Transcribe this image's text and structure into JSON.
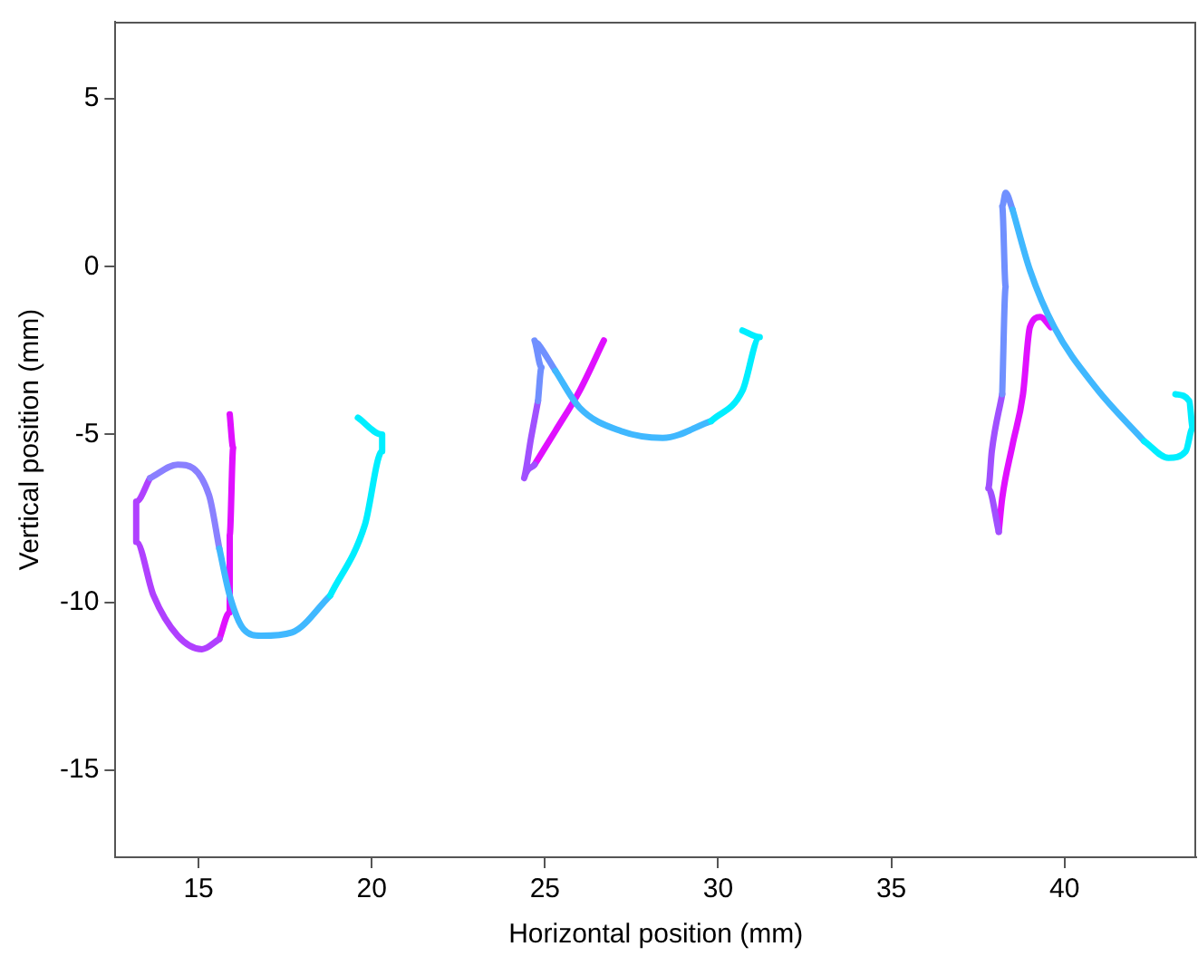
{
  "chart_data": {
    "type": "line",
    "xlabel": "Horizontal position (mm)",
    "ylabel": "Vertical position (mm)",
    "xlim": [
      12.6,
      43.8
    ],
    "xticks": [
      15,
      20,
      25,
      30,
      35,
      40
    ],
    "ylim": [
      -17.6,
      7.3
    ],
    "yticks": [
      -15,
      -10,
      -5,
      0,
      5
    ],
    "grid": false,
    "legend": false,
    "series": [
      {
        "color": "#00eeff",
        "x": [
          19.6,
          20.3,
          20.3,
          19.8,
          18.8
        ],
        "values": [
          -4.5,
          -5.0,
          -5.5,
          -7.7,
          -9.8
        ]
      },
      {
        "color": "#40b8ff",
        "x": [
          18.8,
          17.7,
          16.8,
          16.3,
          15.9,
          15.6
        ],
        "values": [
          -9.8,
          -10.9,
          -11.0,
          -10.8,
          -9.8,
          -8.4
        ]
      },
      {
        "color": "#8a80ff",
        "x": [
          15.6,
          15.3,
          14.4,
          13.6
        ],
        "values": [
          -8.4,
          -6.8,
          -5.9,
          -6.3
        ]
      },
      {
        "color": "#b040ff",
        "x": [
          13.6,
          13.2,
          13.2,
          13.7,
          14.4,
          15.1,
          15.6
        ],
        "values": [
          -6.3,
          -7.0,
          -8.2,
          -9.8,
          -11.0,
          -11.4,
          -11.1
        ]
      },
      {
        "color": "#e010ff",
        "x": [
          15.6,
          15.9,
          15.9,
          16.0,
          15.9
        ],
        "values": [
          -11.1,
          -10.3,
          -8.0,
          -5.4,
          -4.4
        ]
      },
      {
        "color": "#00eeff",
        "x": [
          30.7,
          31.2,
          30.7,
          29.8
        ],
        "values": [
          -1.9,
          -2.1,
          -3.7,
          -4.6
        ]
      },
      {
        "color": "#40b8ff",
        "x": [
          29.8,
          28.4,
          27.2,
          26.0,
          25.3
        ],
        "values": [
          -4.6,
          -5.1,
          -4.9,
          -4.2,
          -3.1
        ]
      },
      {
        "color": "#7090ff",
        "x": [
          25.3,
          24.8,
          24.7,
          24.9,
          24.8
        ],
        "values": [
          -3.1,
          -2.3,
          -2.2,
          -3.0,
          -4.0
        ]
      },
      {
        "color": "#a050ff",
        "x": [
          24.8,
          24.6,
          24.4,
          24.7
        ],
        "values": [
          -4.0,
          -5.1,
          -6.3,
          -5.9
        ]
      },
      {
        "color": "#e010ff",
        "x": [
          24.7,
          25.3,
          26.0,
          26.7
        ],
        "values": [
          -5.9,
          -4.9,
          -3.7,
          -2.2
        ]
      },
      {
        "color": "#00eeff",
        "x": [
          43.2,
          43.6,
          43.7,
          43.5,
          43.0,
          42.3
        ],
        "values": [
          -3.8,
          -4.0,
          -4.8,
          -5.5,
          -5.7,
          -5.2
        ]
      },
      {
        "color": "#40b8ff",
        "x": [
          42.3,
          40.9,
          39.7,
          39.0,
          38.5
        ],
        "values": [
          -5.2,
          -3.6,
          -1.8,
          -0.1,
          1.7
        ]
      },
      {
        "color": "#7090ff",
        "x": [
          38.5,
          38.3,
          38.2,
          38.3,
          38.2
        ],
        "values": [
          1.7,
          2.2,
          1.8,
          -0.6,
          -3.8
        ]
      },
      {
        "color": "#a050ff",
        "x": [
          38.2,
          37.9,
          37.8,
          38.1
        ],
        "values": [
          -3.8,
          -5.5,
          -6.6,
          -7.9
        ]
      },
      {
        "color": "#e010ff",
        "x": [
          38.1,
          38.2,
          38.5,
          38.8,
          39.0,
          39.3,
          39.6
        ],
        "values": [
          -7.9,
          -6.9,
          -5.3,
          -3.8,
          -1.8,
          -1.5,
          -1.8
        ]
      }
    ]
  }
}
